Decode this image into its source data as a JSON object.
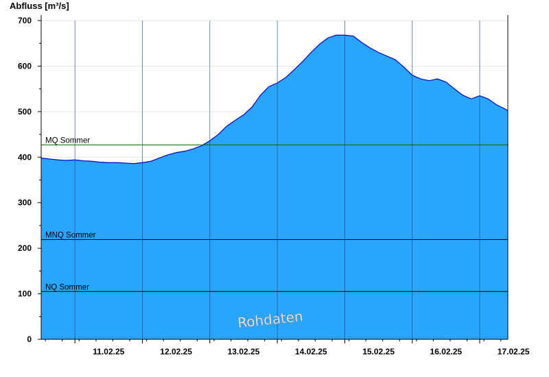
{
  "chart_data": {
    "type": "area",
    "ylabel": "Abfluss [m³/s]",
    "ylim": [
      0,
      700
    ],
    "yticks": [
      0,
      100,
      200,
      300,
      400,
      500,
      600,
      700
    ],
    "xlim": [
      "2025-02-10 12:00",
      "2025-02-17 10:00"
    ],
    "x_tick_labels": [
      "11.02.25",
      "12.02.25",
      "13.02.25",
      "14.02.25",
      "15.02.25",
      "16.02.25",
      "17.02.25"
    ],
    "day_boundaries": [
      "2025-02-11 00:00",
      "2025-02-12 00:00",
      "2025-02-13 00:00",
      "2025-02-14 00:00",
      "2025-02-15 00:00",
      "2025-02-16 00:00",
      "2025-02-17 00:00"
    ],
    "grid": true,
    "fill_color": "#2aa5fe",
    "line_color": "#0000cc",
    "watermark": "Rohdaten",
    "reference_lines": [
      {
        "label": "MQ Sommer",
        "value": 427,
        "color": "#006400"
      },
      {
        "label": "MNQ Sommer",
        "value": 219,
        "color": "#000000"
      },
      {
        "label": "NQ Sommer",
        "value": 105,
        "color": "#000000"
      }
    ],
    "series": [
      {
        "x": [
          "2025-02-10 12:00",
          "2025-02-10 15:00",
          "2025-02-10 18:00",
          "2025-02-10 21:00",
          "2025-02-11 00:00",
          "2025-02-11 03:00",
          "2025-02-11 06:00",
          "2025-02-11 09:00",
          "2025-02-11 12:00",
          "2025-02-11 15:00",
          "2025-02-11 18:00",
          "2025-02-11 21:00",
          "2025-02-12 00:00",
          "2025-02-12 03:00",
          "2025-02-12 06:00",
          "2025-02-12 09:00",
          "2025-02-12 12:00",
          "2025-02-12 15:00",
          "2025-02-12 18:00",
          "2025-02-12 21:00",
          "2025-02-13 00:00",
          "2025-02-13 03:00",
          "2025-02-13 06:00",
          "2025-02-13 09:00",
          "2025-02-13 12:00",
          "2025-02-13 15:00",
          "2025-02-13 18:00",
          "2025-02-13 21:00",
          "2025-02-14 00:00",
          "2025-02-14 03:00",
          "2025-02-14 06:00",
          "2025-02-14 09:00",
          "2025-02-14 12:00",
          "2025-02-14 15:00",
          "2025-02-14 18:00",
          "2025-02-14 21:00",
          "2025-02-15 00:00",
          "2025-02-15 03:00",
          "2025-02-15 06:00",
          "2025-02-15 09:00",
          "2025-02-15 12:00",
          "2025-02-15 15:00",
          "2025-02-15 18:00",
          "2025-02-15 21:00",
          "2025-02-16 00:00",
          "2025-02-16 03:00",
          "2025-02-16 06:00",
          "2025-02-16 09:00",
          "2025-02-16 12:00",
          "2025-02-16 15:00",
          "2025-02-16 18:00",
          "2025-02-16 21:00",
          "2025-02-17 00:00",
          "2025-02-17 03:00",
          "2025-02-17 06:00",
          "2025-02-17 09:00",
          "2025-02-17 10:00"
        ],
        "values": [
          398,
          396,
          394,
          393,
          394,
          392,
          391,
          389,
          388,
          388,
          387,
          386,
          388,
          391,
          398,
          405,
          410,
          413,
          418,
          425,
          436,
          450,
          468,
          481,
          493,
          510,
          536,
          555,
          563,
          575,
          592,
          610,
          630,
          648,
          662,
          668,
          668,
          666,
          652,
          640,
          630,
          622,
          614,
          598,
          580,
          572,
          568,
          572,
          565,
          550,
          536,
          528,
          535,
          528,
          515,
          506,
          502
        ]
      }
    ]
  }
}
